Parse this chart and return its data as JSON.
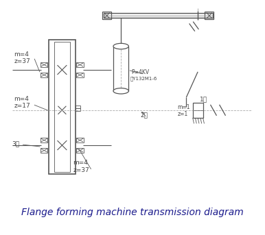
{
  "title": "Flange forming machine transmission diagram",
  "title_color": "#1a1a8c",
  "title_fontsize": 10,
  "bg": "#ffffff",
  "lc": "#555555",
  "tc": "#444444",
  "g1": "m=4\nz=37",
  "g2": "m=4\nz=17",
  "g3": "m=4\nz=37",
  "mp": "P=4KV",
  "mm": "型Y132M1-6",
  "s1": "1轴",
  "s2": "2轴",
  "s3": "3轴",
  "wm_top": "m=1",
  "wm_bot": "z=1",
  "figw": 3.86,
  "figh": 3.43,
  "dpi": 100
}
